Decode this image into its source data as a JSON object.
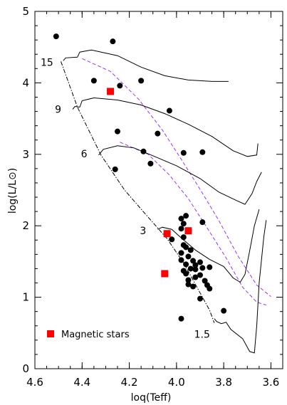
{
  "chart_data": {
    "type": "scatter",
    "xlabel": "loq(Teff)",
    "ylabel": "log(L/L⊙)",
    "xlim": [
      4.6,
      3.55
    ],
    "ylim": [
      0,
      5
    ],
    "x_ticks": [
      {
        "value": 4.6,
        "label": "4.6"
      },
      {
        "value": 4.4,
        "label": "4.4"
      },
      {
        "value": 4.2,
        "label": "4.2"
      },
      {
        "value": 4.0,
        "label": "4.0"
      },
      {
        "value": 3.8,
        "label": "3.8"
      },
      {
        "value": 3.6,
        "label": "3.6"
      }
    ],
    "y_ticks": [
      {
        "value": 0,
        "label": "0"
      },
      {
        "value": 1,
        "label": "1"
      },
      {
        "value": 2,
        "label": "2"
      },
      {
        "value": 3,
        "label": "3"
      },
      {
        "value": 4,
        "label": "4"
      },
      {
        "value": 5,
        "label": "5"
      }
    ],
    "series": [
      {
        "name": "",
        "marker": "circle",
        "color": "#000000",
        "points": [
          [
            4.51,
            4.65
          ],
          [
            4.27,
            4.58
          ],
          [
            4.35,
            4.03
          ],
          [
            4.24,
            3.96
          ],
          [
            4.15,
            4.03
          ],
          [
            4.03,
            3.61
          ],
          [
            4.25,
            3.32
          ],
          [
            4.08,
            3.29
          ],
          [
            4.14,
            3.04
          ],
          [
            4.11,
            2.87
          ],
          [
            3.97,
            3.02
          ],
          [
            3.89,
            3.03
          ],
          [
            4.26,
            2.79
          ],
          [
            4.02,
            1.81
          ],
          [
            3.98,
            2.1
          ],
          [
            3.96,
            2.14
          ],
          [
            3.97,
            2.03
          ],
          [
            3.89,
            2.05
          ],
          [
            3.98,
            1.96
          ],
          [
            3.97,
            1.84
          ],
          [
            3.97,
            1.73
          ],
          [
            3.98,
            1.62
          ],
          [
            3.96,
            1.7
          ],
          [
            3.94,
            1.66
          ],
          [
            3.95,
            1.57
          ],
          [
            3.98,
            1.52
          ],
          [
            3.93,
            1.51
          ],
          [
            3.92,
            1.45
          ],
          [
            3.9,
            1.49
          ],
          [
            3.96,
            1.46
          ],
          [
            3.97,
            1.37
          ],
          [
            3.94,
            1.4
          ],
          [
            3.96,
            1.33
          ],
          [
            3.92,
            1.39
          ],
          [
            3.89,
            1.41
          ],
          [
            3.86,
            1.42
          ],
          [
            3.95,
            1.24
          ],
          [
            3.92,
            1.28
          ],
          [
            3.9,
            1.31
          ],
          [
            3.88,
            1.23
          ],
          [
            3.95,
            1.18
          ],
          [
            3.93,
            1.15
          ],
          [
            3.87,
            1.17
          ],
          [
            3.86,
            1.12
          ],
          [
            3.9,
            0.98
          ],
          [
            3.98,
            0.7
          ],
          [
            3.8,
            0.81
          ]
        ]
      },
      {
        "name": "Magnetic stars",
        "marker": "square",
        "color": "#ff0000",
        "points": [
          [
            4.28,
            3.88
          ],
          [
            4.04,
            1.89
          ],
          [
            3.95,
            1.93
          ],
          [
            4.05,
            1.33
          ]
        ]
      }
    ],
    "tracks": [
      {
        "mass_label": "15",
        "points": [
          [
            4.48,
            4.31
          ],
          [
            4.47,
            4.35
          ],
          [
            4.42,
            4.36
          ],
          [
            4.41,
            4.43
          ],
          [
            4.36,
            4.46
          ],
          [
            4.25,
            4.38
          ],
          [
            4.15,
            4.22
          ],
          [
            4.05,
            4.1
          ],
          [
            3.95,
            4.04
          ],
          [
            3.85,
            4.02
          ],
          [
            3.78,
            4.02
          ]
        ]
      },
      {
        "mass_label": "9",
        "points": [
          [
            4.44,
            3.63
          ],
          [
            4.43,
            3.67
          ],
          [
            4.41,
            3.66
          ],
          [
            4.4,
            3.75
          ],
          [
            4.35,
            3.79
          ],
          [
            4.25,
            3.76
          ],
          [
            4.15,
            3.69
          ],
          [
            4.05,
            3.57
          ],
          [
            3.95,
            3.42
          ],
          [
            3.85,
            3.25
          ],
          [
            3.76,
            3.05
          ],
          [
            3.7,
            2.97
          ],
          [
            3.66,
            2.99
          ],
          [
            3.655,
            3.15
          ]
        ]
      },
      {
        "mass_label": "6",
        "points": [
          [
            4.33,
            2.99
          ],
          [
            4.31,
            3.07
          ],
          [
            4.25,
            3.12
          ],
          [
            4.18,
            3.09
          ],
          [
            4.1,
            2.98
          ],
          [
            4.0,
            2.84
          ],
          [
            3.9,
            2.66
          ],
          [
            3.82,
            2.47
          ],
          [
            3.75,
            2.36
          ],
          [
            3.71,
            2.3
          ],
          [
            3.68,
            2.45
          ],
          [
            3.66,
            2.62
          ],
          [
            3.64,
            2.75
          ]
        ]
      },
      {
        "mass_label": "3",
        "points": [
          [
            4.08,
            1.95
          ],
          [
            4.06,
            1.98
          ],
          [
            4.02,
            1.95
          ],
          [
            3.98,
            1.83
          ],
          [
            3.92,
            1.66
          ],
          [
            3.86,
            1.53
          ],
          [
            3.8,
            1.43
          ],
          [
            3.76,
            1.27
          ],
          [
            3.73,
            1.21
          ],
          [
            3.71,
            1.32
          ],
          [
            3.69,
            1.65
          ],
          [
            3.67,
            2.0
          ],
          [
            3.65,
            2.23
          ]
        ]
      },
      {
        "mass_label": "1.5",
        "points": [
          [
            3.84,
            0.7
          ],
          [
            3.83,
            0.66
          ],
          [
            3.81,
            0.63
          ],
          [
            3.79,
            0.65
          ],
          [
            3.77,
            0.55
          ],
          [
            3.72,
            0.42
          ],
          [
            3.69,
            0.24
          ],
          [
            3.67,
            0.22
          ],
          [
            3.66,
            0.6
          ],
          [
            3.65,
            1.2
          ],
          [
            3.63,
            1.85
          ],
          [
            3.62,
            2.08
          ]
        ]
      }
    ],
    "zams": [
      [
        4.49,
        4.3
      ],
      [
        4.42,
        3.66
      ],
      [
        4.32,
        2.99
      ],
      [
        4.22,
        2.5
      ],
      [
        4.12,
        2.12
      ],
      [
        4.04,
        1.82
      ],
      [
        3.97,
        1.48
      ],
      [
        3.91,
        1.12
      ],
      [
        3.86,
        0.82
      ],
      [
        3.84,
        0.64
      ]
    ],
    "dashed_lines": [
      {
        "color": "#9933ff",
        "points": [
          [
            4.4,
            4.34
          ],
          [
            4.28,
            4.16
          ],
          [
            4.16,
            3.77
          ],
          [
            4.06,
            3.34
          ],
          [
            3.98,
            2.93
          ],
          [
            3.9,
            2.51
          ],
          [
            3.82,
            2.07
          ],
          [
            3.74,
            1.58
          ],
          [
            3.66,
            1.17
          ],
          [
            3.6,
            1.01
          ]
        ]
      },
      {
        "color": "#9933ff",
        "points": [
          [
            4.24,
            3.17
          ],
          [
            4.12,
            3.0
          ],
          [
            4.03,
            2.71
          ],
          [
            3.95,
            2.38
          ],
          [
            3.87,
            1.97
          ],
          [
            3.79,
            1.55
          ],
          [
            3.72,
            1.14
          ],
          [
            3.66,
            0.93
          ],
          [
            3.62,
            0.89
          ]
        ]
      }
    ],
    "legend": {
      "label": "Magnetic stars",
      "placement": "bottom-left"
    },
    "grid": false
  }
}
